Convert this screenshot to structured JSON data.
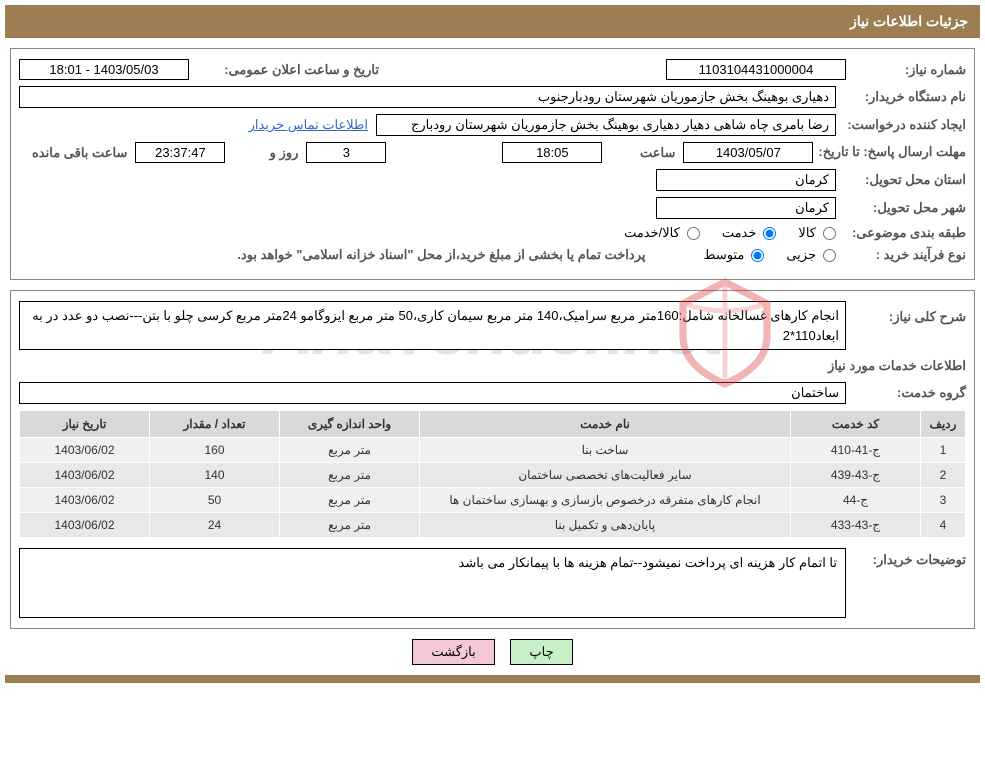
{
  "header": {
    "title": "جزئیات اطلاعات نیاز"
  },
  "fields": {
    "need_number_label": "شماره نیاز:",
    "need_number": "1103104431000004",
    "announce_label": "تاریخ و ساعت اعلان عمومی:",
    "announce_value": "1403/05/03 - 18:01",
    "buyer_org_label": "نام دستگاه خریدار:",
    "buyer_org": "دهیاری بوهینگ بخش جازموریان شهرستان رودبارجنوب",
    "requester_label": "ایجاد کننده درخواست:",
    "requester": "رضا بامری چاه شاهی دهیار دهیاری بوهینگ بخش جازموریان شهرستان رودبارج",
    "contact_link": "اطلاعات تماس خریدار",
    "deadline_label": "مهلت ارسال پاسخ: تا تاریخ:",
    "deadline_date": "1403/05/07",
    "time_label": "ساعت",
    "deadline_time": "18:05",
    "days_value": "3",
    "days_label": "روز و",
    "countdown": "23:37:47",
    "remaining_label": "ساعت باقی مانده",
    "province_label": "استان محل تحویل:",
    "province": "کرمان",
    "city_label": "شهر محل تحویل:",
    "city": "کرمان",
    "category_label": "طبقه بندی موضوعی:",
    "cat_goods": "کالا",
    "cat_service": "خدمت",
    "cat_goods_service": "کالا/خدمت",
    "process_label": "نوع فرآیند خرید :",
    "proc_minor": "جزیی",
    "proc_medium": "متوسط",
    "payment_text": "پرداخت تمام یا بخشی از مبلغ خرید،از محل \"اسناد خزانه اسلامی\" خواهد بود.",
    "desc_label": "شرح کلی نیاز:",
    "desc_text": "انجام کارهای غسالخانه شامل:160متر مربع سرامیک،140 متر مربع سیمان کاری،50 متر مربع ایزوگامو 24متر مربع کرسی چلو با بتن---نصب دو عدد در به ابعاد110*2",
    "services_title": "اطلاعات خدمات مورد نیاز",
    "group_label": "گروه خدمت:",
    "group_value": "ساختمان",
    "explain_label": "توضیحات خریدار:",
    "explain_text": "تا اتمام کار هزینه ای پرداخت نمیشود--تمام هزینه ها با پیمانکار می باشد"
  },
  "table": {
    "headers": {
      "row": "ردیف",
      "code": "کد خدمت",
      "name": "نام خدمت",
      "unit": "واحد اندازه گیری",
      "qty": "تعداد / مقدار",
      "date": "تاریخ نیاز"
    },
    "rows": [
      {
        "n": "1",
        "code": "ج-41-410",
        "name": "ساخت بنا",
        "unit": "متر مربع",
        "qty": "160",
        "date": "1403/06/02"
      },
      {
        "n": "2",
        "code": "ج-43-439",
        "name": "سایر فعالیت‌های تخصصی ساختمان",
        "unit": "متر مربع",
        "qty": "140",
        "date": "1403/06/02"
      },
      {
        "n": "3",
        "code": "ج-44",
        "name": "انجام کارهای متفرقه درخصوص بازسازی و بهسازی ساختمان ها",
        "unit": "متر مربع",
        "qty": "50",
        "date": "1403/06/02"
      },
      {
        "n": "4",
        "code": "ج-43-433",
        "name": "پایان‌دهی و تکمیل بنا",
        "unit": "متر مربع",
        "qty": "24",
        "date": "1403/06/02"
      }
    ]
  },
  "buttons": {
    "print": "چاپ",
    "back": "بازگشت"
  },
  "watermark": {
    "text": "AriaTender.net"
  }
}
